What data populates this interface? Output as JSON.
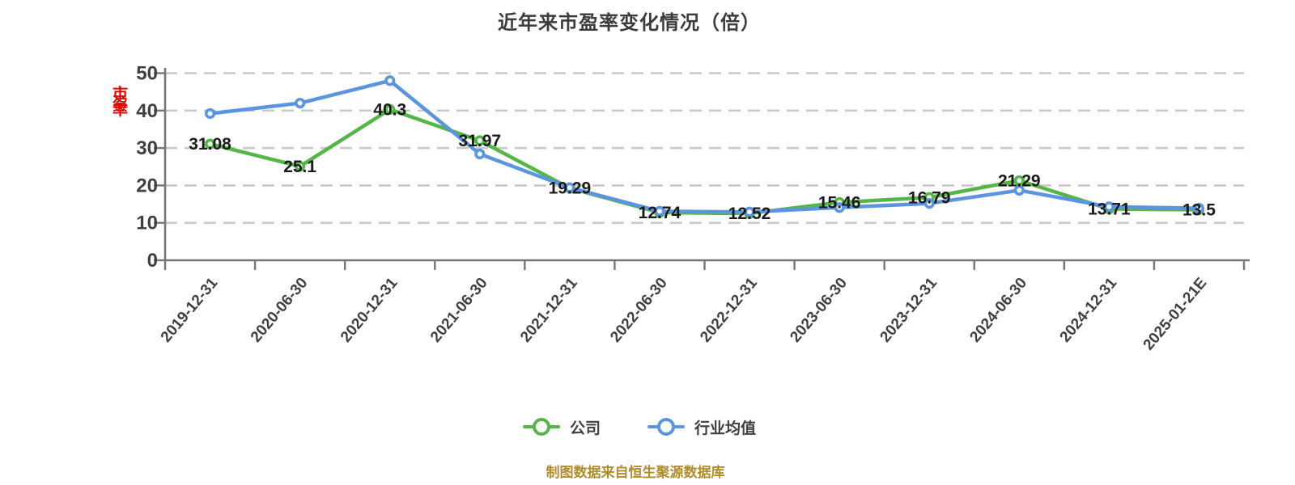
{
  "title": "近年来市盈率变化情况（倍）",
  "y_axis_stamp": "市盈率",
  "footer": "制图数据来自恒生聚源数据库",
  "legend": [
    {
      "label": "公司"
    },
    {
      "label": "行业均值"
    }
  ],
  "colors": {
    "company": "#55b648",
    "industry": "#5b95e1",
    "grid": "#c9c9c9",
    "axis": "#767676",
    "tick_text": "#404040",
    "label_text": "#1a1a1a",
    "title": "#3c3c3c",
    "footer": "#b08c2a",
    "stamp": "#e60000",
    "marker_fill": "#ffffff",
    "background": "#ffffff"
  },
  "chart_data": {
    "type": "line",
    "title": "近年来市盈率变化情况（倍）",
    "categories": [
      "2019-12-31",
      "2020-06-30",
      "2020-12-31",
      "2021-06-30",
      "2021-12-31",
      "2022-06-30",
      "2022-12-31",
      "2023-06-30",
      "2023-12-31",
      "2024-06-30",
      "2024-12-31",
      "2025-01-21E"
    ],
    "series": [
      {
        "name": "公司",
        "color": "#55b648",
        "values": [
          31.08,
          25.1,
          40.3,
          31.97,
          19.29,
          12.74,
          12.52,
          15.46,
          16.79,
          21.29,
          13.71,
          13.5
        ],
        "labels": [
          "31.08",
          "25.1",
          "40.3",
          "31.97",
          "19.29",
          "12.74",
          "12.52",
          "15.46",
          "16.79",
          "21.29",
          "13.71",
          "13.5"
        ],
        "show_point_labels": true
      },
      {
        "name": "行业均值",
        "color": "#5b95e1",
        "values": [
          39.2,
          42.0,
          48.0,
          28.4,
          19.4,
          13.1,
          12.9,
          14.1,
          15.2,
          18.7,
          14.3,
          13.9
        ],
        "values_estimated_from_pixels": true,
        "show_point_labels": false
      }
    ],
    "ylim": [
      0,
      50
    ],
    "y_ticks": [
      0,
      10,
      20,
      30,
      40,
      50
    ],
    "grid": "horizontal-dashed",
    "legend_position": "bottom",
    "x_tick_rotation": -50
  }
}
